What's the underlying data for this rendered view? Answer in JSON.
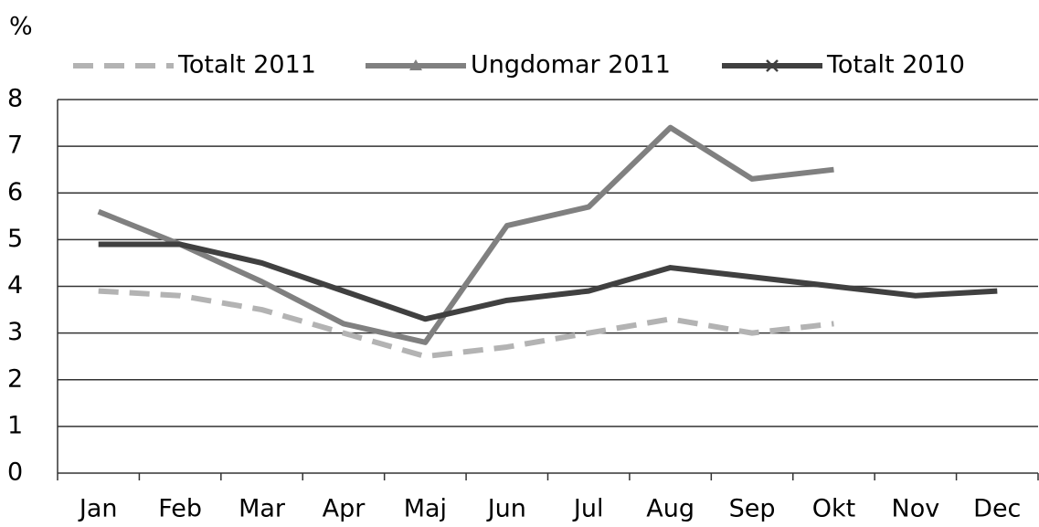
{
  "chart_data": {
    "type": "line",
    "y_label": "%",
    "categories": [
      "Jan",
      "Feb",
      "Mar",
      "Apr",
      "Maj",
      "Jun",
      "Jul",
      "Aug",
      "Sep",
      "Okt",
      "Nov",
      "Dec"
    ],
    "series": [
      {
        "name": "Totalt 2011",
        "color": "#b3b3b3",
        "dash": true,
        "values": [
          3.9,
          3.8,
          3.5,
          3.0,
          2.5,
          2.7,
          3.0,
          3.3,
          3.0,
          3.2,
          null,
          null
        ]
      },
      {
        "name": "Ungdomar 2011",
        "color": "#808080",
        "marker": "triangle",
        "values": [
          5.6,
          4.9,
          4.1,
          3.2,
          2.8,
          5.3,
          5.7,
          7.4,
          6.3,
          6.5,
          null,
          null
        ]
      },
      {
        "name": "Totalt 2010",
        "color": "#404040",
        "marker": "x",
        "values": [
          4.9,
          4.9,
          4.5,
          3.9,
          3.3,
          3.7,
          3.9,
          4.4,
          4.2,
          4.0,
          3.8,
          3.9
        ]
      }
    ],
    "ylim": [
      0,
      8
    ],
    "yticks": [
      0,
      1,
      2,
      3,
      4,
      5,
      6,
      7,
      8
    ],
    "grid": true,
    "legend": "top"
  }
}
